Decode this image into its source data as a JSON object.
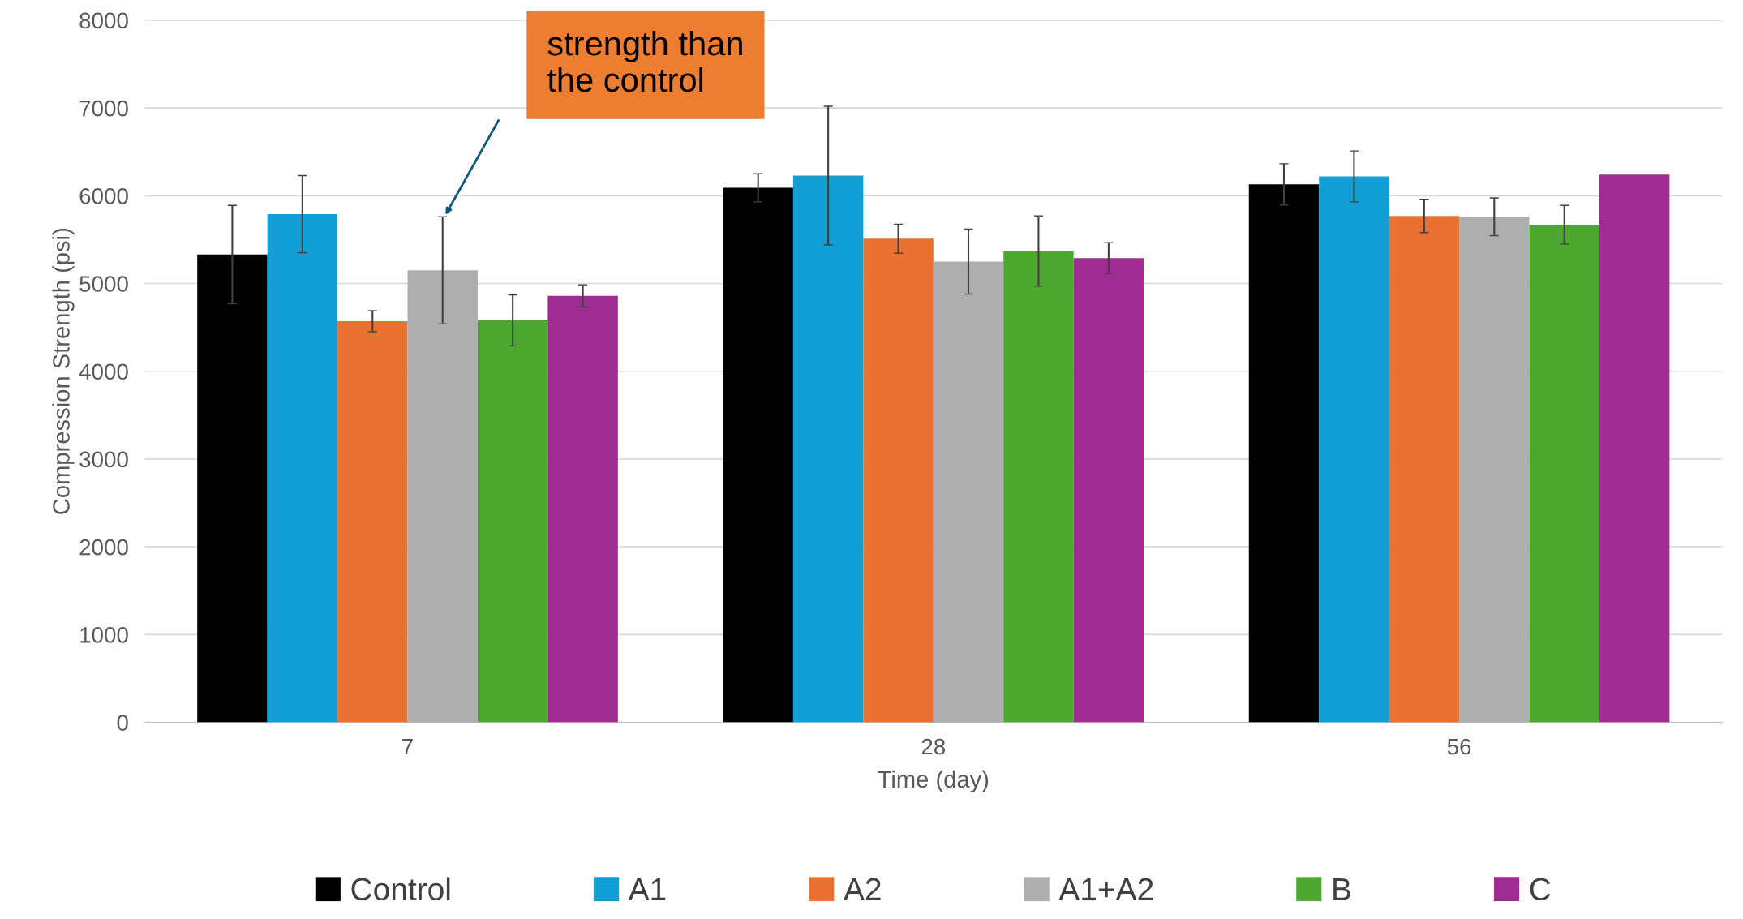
{
  "chart_data": {
    "type": "bar",
    "xlabel": "Time (day)",
    "ylabel": "Compression Strength (psi)",
    "categories": [
      "7",
      "28",
      "56"
    ],
    "series": [
      {
        "name": "Control",
        "color": "#000000",
        "values": [
          5330,
          6090,
          6130
        ],
        "errors": [
          560,
          160,
          235
        ]
      },
      {
        "name": "A1",
        "color": "#119fd6",
        "values": [
          5790,
          6230,
          6220
        ],
        "errors": [
          440,
          790,
          290
        ]
      },
      {
        "name": "A2",
        "color": "#e97132",
        "values": [
          4570,
          5510,
          5770
        ],
        "errors": [
          120,
          165,
          190
        ]
      },
      {
        "name": "A1+A2",
        "color": "#aeaeae",
        "values": [
          5150,
          5250,
          5760
        ],
        "errors": [
          610,
          370,
          215
        ]
      },
      {
        "name": "B",
        "color": "#4ea72e",
        "values": [
          4580,
          5370,
          5670
        ],
        "errors": [
          290,
          400,
          220
        ]
      },
      {
        "name": "C",
        "color": "#a02b93",
        "values": [
          4860,
          5290,
          6240
        ],
        "errors": [
          125,
          175,
          null
        ]
      }
    ],
    "ylim": [
      0,
      8000
    ],
    "yticks": [
      0,
      1000,
      2000,
      3000,
      4000,
      5000,
      6000,
      7000,
      8000
    ],
    "grid": "y",
    "legend": "bottom",
    "annotations": [
      "strength than\nthe control"
    ]
  }
}
